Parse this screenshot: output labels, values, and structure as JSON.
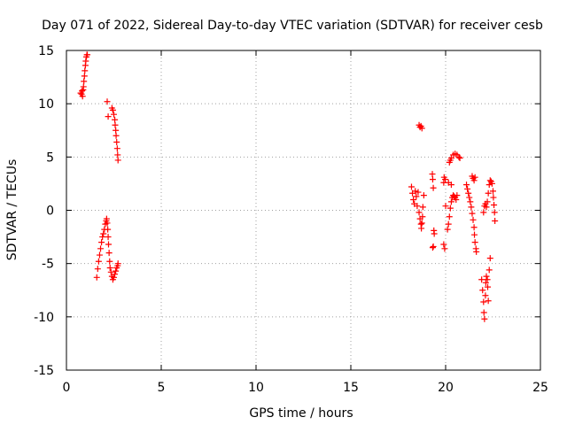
{
  "chart_data": {
    "type": "scatter",
    "title": "Day 071 of 2022, Sidereal Day-to-day VTEC variation (SDTVAR) for receiver cesb",
    "xlabel": "GPS time / hours",
    "ylabel": "SDTVAR / TECUs",
    "xlim": [
      0,
      25
    ],
    "ylim": [
      -15,
      15
    ],
    "xticks": [
      0,
      5,
      10,
      15,
      20,
      25
    ],
    "yticks": [
      -15,
      -10,
      -5,
      0,
      5,
      10,
      15
    ],
    "xtick_labels": [
      "0",
      "5",
      "10",
      "15",
      "20",
      "25"
    ],
    "ytick_labels": [
      "-15",
      "-10",
      "-5",
      "0",
      "5",
      "10",
      "15"
    ],
    "grid": true,
    "marker": "plus",
    "color": "#ff0000",
    "series": [
      {
        "name": "SDTVAR",
        "points": [
          [
            0.75,
            11.0
          ],
          [
            0.8,
            10.9
          ],
          [
            0.82,
            11.2
          ],
          [
            0.85,
            10.7
          ],
          [
            0.88,
            11.3
          ],
          [
            0.9,
            11.6
          ],
          [
            0.92,
            12.1
          ],
          [
            0.95,
            12.6
          ],
          [
            0.97,
            13.1
          ],
          [
            1.0,
            13.6
          ],
          [
            1.02,
            14.0
          ],
          [
            1.05,
            14.4
          ],
          [
            1.08,
            14.6
          ],
          [
            1.1,
            14.6
          ],
          [
            2.15,
            10.2
          ],
          [
            2.2,
            8.8
          ],
          [
            2.4,
            9.6
          ],
          [
            2.45,
            9.4
          ],
          [
            2.5,
            9.0
          ],
          [
            2.55,
            8.5
          ],
          [
            2.57,
            8.0
          ],
          [
            2.6,
            7.5
          ],
          [
            2.62,
            7.0
          ],
          [
            2.65,
            6.4
          ],
          [
            2.68,
            5.8
          ],
          [
            2.7,
            5.2
          ],
          [
            2.72,
            4.7
          ],
          [
            1.6,
            -6.3
          ],
          [
            1.65,
            -5.5
          ],
          [
            1.7,
            -4.8
          ],
          [
            1.75,
            -4.2
          ],
          [
            1.8,
            -3.6
          ],
          [
            1.85,
            -3.0
          ],
          [
            1.9,
            -2.5
          ],
          [
            1.95,
            -2.2
          ],
          [
            2.0,
            -1.8
          ],
          [
            2.05,
            -1.3
          ],
          [
            2.1,
            -1.0
          ],
          [
            2.12,
            -0.8
          ],
          [
            2.15,
            -1.2
          ],
          [
            2.18,
            -1.8
          ],
          [
            2.2,
            -2.5
          ],
          [
            2.22,
            -3.2
          ],
          [
            2.25,
            -4.0
          ],
          [
            2.28,
            -4.8
          ],
          [
            2.3,
            -5.4
          ],
          [
            2.35,
            -5.8
          ],
          [
            2.4,
            -6.2
          ],
          [
            2.45,
            -6.5
          ],
          [
            2.5,
            -6.3
          ],
          [
            2.55,
            -6.0
          ],
          [
            2.6,
            -5.7
          ],
          [
            2.65,
            -5.4
          ],
          [
            2.7,
            -5.2
          ],
          [
            2.72,
            -5.0
          ],
          [
            18.2,
            2.2
          ],
          [
            18.25,
            1.6
          ],
          [
            18.3,
            1.0
          ],
          [
            18.35,
            0.6
          ],
          [
            18.4,
            1.8
          ],
          [
            18.45,
            1.3
          ],
          [
            18.5,
            0.4
          ],
          [
            18.55,
            1.7
          ],
          [
            18.6,
            -0.2
          ],
          [
            18.65,
            -0.8
          ],
          [
            18.7,
            -1.3
          ],
          [
            18.72,
            -1.7
          ],
          [
            18.75,
            -1.2
          ],
          [
            18.78,
            -0.6
          ],
          [
            18.8,
            0.3
          ],
          [
            18.85,
            1.4
          ],
          [
            18.6,
            8.0
          ],
          [
            18.65,
            7.8
          ],
          [
            18.7,
            7.9
          ],
          [
            18.75,
            7.7
          ],
          [
            19.3,
            3.4
          ],
          [
            19.32,
            2.9
          ],
          [
            19.35,
            2.1
          ],
          [
            19.38,
            -1.9
          ],
          [
            19.4,
            -2.2
          ],
          [
            19.32,
            -3.5
          ],
          [
            19.35,
            -3.4
          ],
          [
            19.9,
            -3.2
          ],
          [
            19.95,
            -3.6
          ],
          [
            19.9,
            2.6
          ],
          [
            19.92,
            3.1
          ],
          [
            19.98,
            2.9
          ],
          [
            20.0,
            0.4
          ],
          [
            20.1,
            -1.8
          ],
          [
            20.15,
            -1.3
          ],
          [
            20.2,
            -0.6
          ],
          [
            20.25,
            0.2
          ],
          [
            20.3,
            0.8
          ],
          [
            20.35,
            1.2
          ],
          [
            20.4,
            1.4
          ],
          [
            20.45,
            1.3
          ],
          [
            20.5,
            1.2
          ],
          [
            20.55,
            1.0
          ],
          [
            20.6,
            1.4
          ],
          [
            20.2,
            4.5
          ],
          [
            20.25,
            4.7
          ],
          [
            20.3,
            4.9
          ],
          [
            20.4,
            5.2
          ],
          [
            20.5,
            5.3
          ],
          [
            20.6,
            5.2
          ],
          [
            20.7,
            5.0
          ],
          [
            20.75,
            4.9
          ],
          [
            20.15,
            2.6
          ],
          [
            20.3,
            2.4
          ],
          [
            21.1,
            2.4
          ],
          [
            21.15,
            2.0
          ],
          [
            21.2,
            1.6
          ],
          [
            21.25,
            1.2
          ],
          [
            21.3,
            0.8
          ],
          [
            21.35,
            0.3
          ],
          [
            21.4,
            -0.3
          ],
          [
            21.45,
            -0.9
          ],
          [
            21.5,
            -1.6
          ],
          [
            21.52,
            -2.3
          ],
          [
            21.55,
            -3.0
          ],
          [
            21.6,
            -3.6
          ],
          [
            21.62,
            -3.9
          ],
          [
            21.4,
            3.2
          ],
          [
            21.45,
            3.0
          ],
          [
            21.5,
            2.8
          ],
          [
            21.55,
            3.1
          ],
          [
            21.9,
            -6.5
          ],
          [
            21.95,
            -7.5
          ],
          [
            22.0,
            -8.6
          ],
          [
            22.02,
            -9.6
          ],
          [
            22.05,
            -10.2
          ],
          [
            22.1,
            -8.0
          ],
          [
            22.12,
            -6.8
          ],
          [
            22.15,
            -6.2
          ],
          [
            22.2,
            -6.5
          ],
          [
            22.22,
            -7.2
          ],
          [
            22.25,
            -8.5
          ],
          [
            22.3,
            -5.6
          ],
          [
            22.35,
            -4.5
          ],
          [
            22.0,
            -0.2
          ],
          [
            22.05,
            0.4
          ],
          [
            22.1,
            0.6
          ],
          [
            22.15,
            0.3
          ],
          [
            22.2,
            0.8
          ],
          [
            22.25,
            1.6
          ],
          [
            22.3,
            2.4
          ],
          [
            22.35,
            2.8
          ],
          [
            22.4,
            2.7
          ],
          [
            22.45,
            2.5
          ],
          [
            22.5,
            1.8
          ],
          [
            22.52,
            1.2
          ],
          [
            22.55,
            0.5
          ],
          [
            22.58,
            -0.2
          ],
          [
            22.6,
            -1.0
          ]
        ]
      }
    ]
  }
}
